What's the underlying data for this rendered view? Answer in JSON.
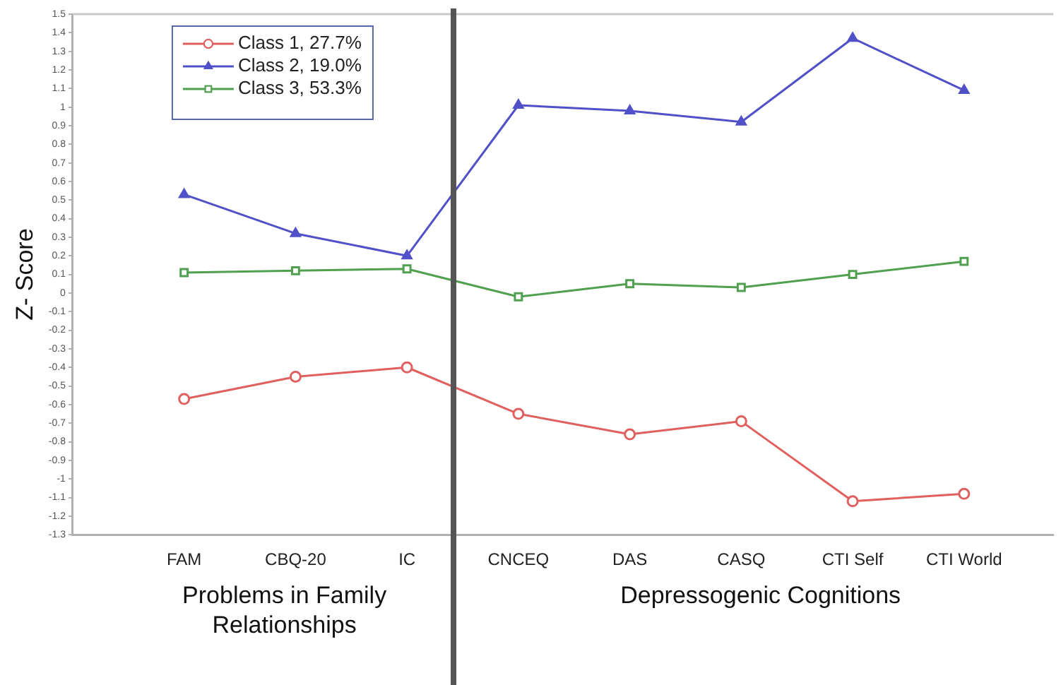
{
  "chart_data": {
    "type": "line",
    "ylabel": "Z- Score",
    "categories": [
      "FAM",
      "CBQ-20",
      "IC",
      "CNCEQ",
      "DAS",
      "CASQ",
      "CTI Self",
      "CTI World"
    ],
    "series": [
      {
        "name": "Class 1, 27.7%",
        "color": "#e06060",
        "marker": "circle",
        "values": [
          -0.57,
          -0.45,
          -0.4,
          -0.65,
          -0.76,
          -0.69,
          -1.12,
          -1.08
        ]
      },
      {
        "name": "Class 2, 19.0%",
        "color": "#5050c8",
        "marker": "triangle",
        "values": [
          0.53,
          0.32,
          0.2,
          1.01,
          0.98,
          0.92,
          1.37,
          1.09
        ]
      },
      {
        "name": "Class 3, 53.3%",
        "color": "#50a050",
        "marker": "square",
        "values": [
          0.11,
          0.12,
          0.13,
          -0.02,
          0.05,
          0.03,
          0.1,
          0.17
        ]
      }
    ],
    "ylim": [
      -1.3,
      1.5
    ],
    "yticks": [
      -1.3,
      -1.2,
      -1.1,
      -1,
      -0.9,
      -0.8,
      -0.7,
      -0.6,
      -0.5,
      -0.4,
      -0.3,
      -0.2,
      -0.1,
      0,
      0.1,
      0.2,
      0.3,
      0.4,
      0.5,
      0.6,
      0.7,
      0.8,
      0.9,
      1,
      1.1,
      1.2,
      1.3,
      1.4,
      1.5
    ],
    "grid": false,
    "legend": "top left",
    "line_style": "solid",
    "annotations": [
      "Problems in Family Relationships",
      "Depressogenic Cognitions"
    ]
  }
}
